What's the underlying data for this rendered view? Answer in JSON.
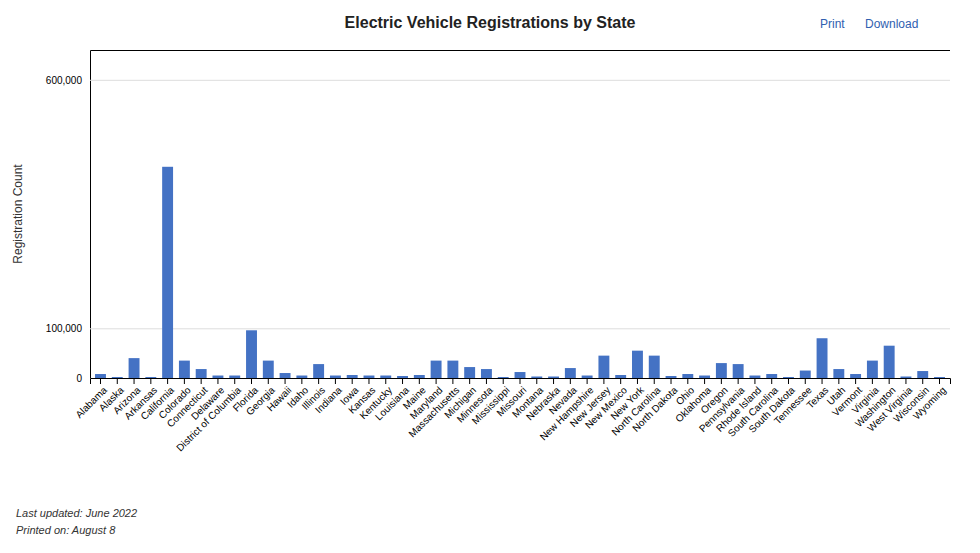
{
  "chart_data": {
    "type": "bar",
    "title": "Electric Vehicle Registrations by State",
    "ylabel": "Registration Count",
    "annotations": [
      "Print",
      "Download",
      "Last updated: June 2022",
      "Printed on: August 8"
    ],
    "categories": [
      "Alabama",
      "Alaska",
      "Arizona",
      "Arkansas",
      "California",
      "Colorado",
      "Connecticut",
      "Delaware",
      "District of Columbia",
      "Florida",
      "Georgia",
      "Hawaii",
      "Idaho",
      "Illinois",
      "Indiana",
      "Iowa",
      "Kansas",
      "Kentucky",
      "Louisiana",
      "Maine",
      "Maryland",
      "Massachusetts",
      "Michigan",
      "Minnesota",
      "Mississippi",
      "Missouri",
      "Montana",
      "Nebraska",
      "Nevada",
      "New Hampshire",
      "New Jersey",
      "New Mexico",
      "New York",
      "North Carolina",
      "North Dakota",
      "Ohio",
      "Oklahoma",
      "Oregon",
      "Pennsylvania",
      "Rhode Island",
      "South Carolina",
      "South Dakota",
      "Tennessee",
      "Texas",
      "Utah",
      "Vermont",
      "Virginia",
      "Washington",
      "West Virginia",
      "Wisconsin",
      "Wyoming"
    ],
    "values": [
      8000,
      2000,
      40000,
      2000,
      425000,
      35000,
      18000,
      5000,
      5000,
      96000,
      35000,
      10000,
      5000,
      28000,
      5000,
      6000,
      5000,
      5000,
      4000,
      6000,
      35000,
      35000,
      22000,
      18000,
      2000,
      12000,
      3000,
      3000,
      20000,
      5000,
      45000,
      6000,
      55000,
      45000,
      4000,
      8000,
      5000,
      30000,
      28000,
      5000,
      8000,
      2000,
      15000,
      80000,
      18000,
      8000,
      35000,
      65000,
      3000,
      14000,
      2000
    ],
    "color": "#4472C4",
    "ylim": [
      0,
      660000
    ],
    "yticks": [
      0,
      {
        "value": 100000,
        "label": "100,000"
      },
      {
        "value": 600000,
        "label": "600,000"
      }
    ],
    "grid": true
  }
}
